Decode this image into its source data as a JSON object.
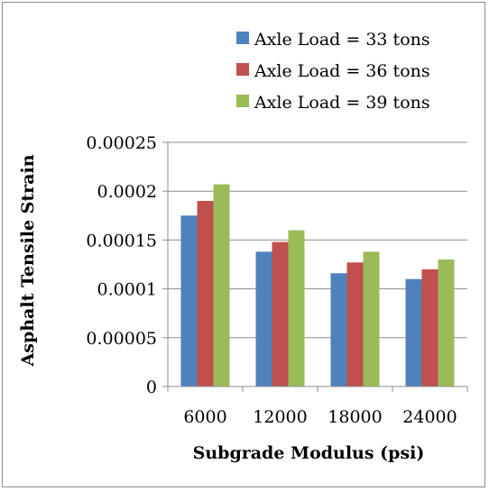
{
  "chart_data": {
    "type": "bar",
    "categories": [
      "6000",
      "12000",
      "18000",
      "24000"
    ],
    "series": [
      {
        "name": "Axle Load = 33 tons",
        "color": "#4f81bd",
        "values": [
          0.000175,
          0.000138,
          0.000116,
          0.00011
        ]
      },
      {
        "name": "Axle Load = 36 tons",
        "color": "#c0504d",
        "values": [
          0.00019,
          0.000148,
          0.000127,
          0.00012
        ]
      },
      {
        "name": "Axle Load = 39 tons",
        "color": "#9bbb59",
        "values": [
          0.000207,
          0.00016,
          0.000138,
          0.00013
        ]
      }
    ],
    "xlabel": "Subgrade Modulus (psi)",
    "ylabel": "Asphalt Tensile Strain",
    "ylim": [
      0,
      0.00025
    ],
    "yticks": [
      {
        "value": 0,
        "label": "0"
      },
      {
        "value": 5e-05,
        "label": "0.00005"
      },
      {
        "value": 0.0001,
        "label": "0.0001"
      },
      {
        "value": 0.00015,
        "label": "0.00015"
      },
      {
        "value": 0.0002,
        "label": "0.0002"
      },
      {
        "value": 0.00025,
        "label": "0.00025"
      }
    ],
    "grid": true,
    "legend_position": "top-right"
  }
}
